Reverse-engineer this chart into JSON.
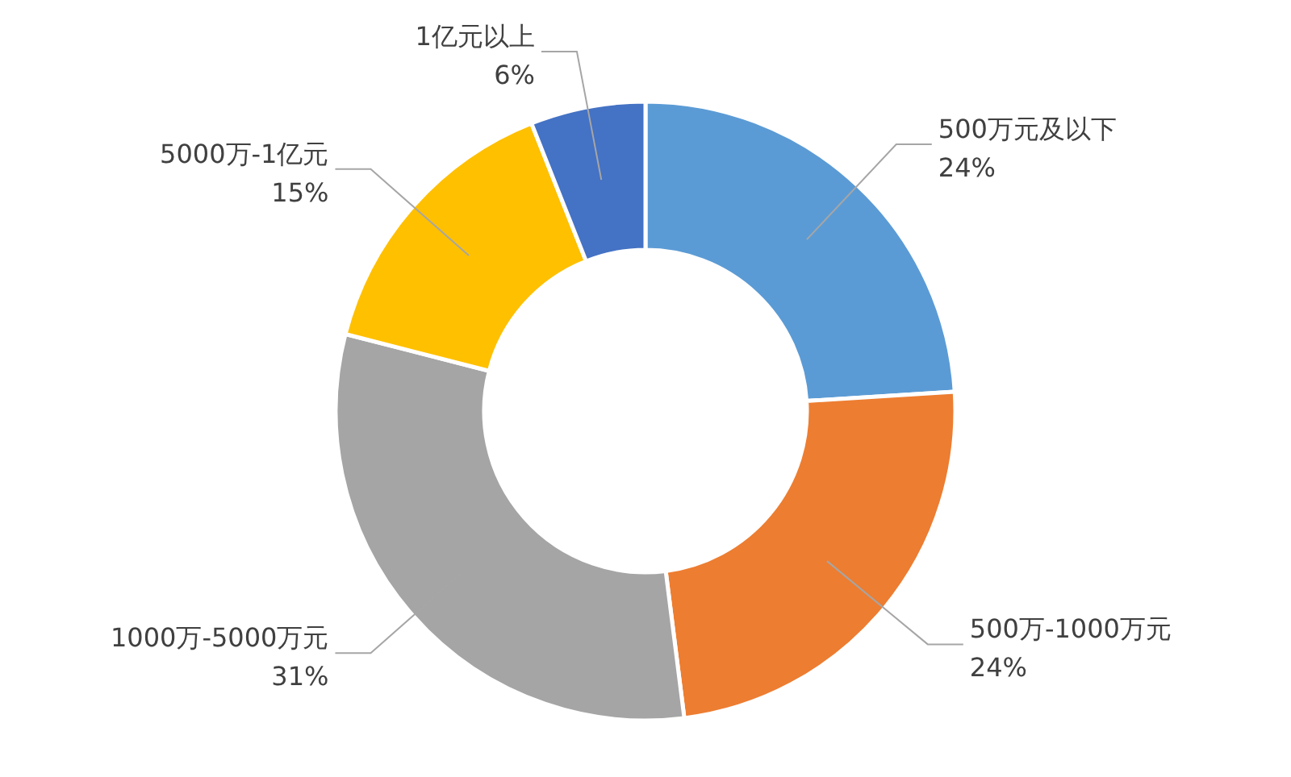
{
  "chart_data": {
    "type": "donut",
    "categories": [
      "500万元及以下",
      "500万-1000万元",
      "1000万-5000万元",
      "5000万-1亿元",
      "1亿元以上"
    ],
    "values": [
      24,
      24,
      31,
      15,
      6
    ],
    "colors": [
      "#5b9bd5",
      "#ed7d31",
      "#a5a5a5",
      "#ffc000",
      "#4472c4"
    ],
    "value_labels": [
      "24%",
      "24%",
      "31%",
      "15%",
      "6%"
    ]
  }
}
